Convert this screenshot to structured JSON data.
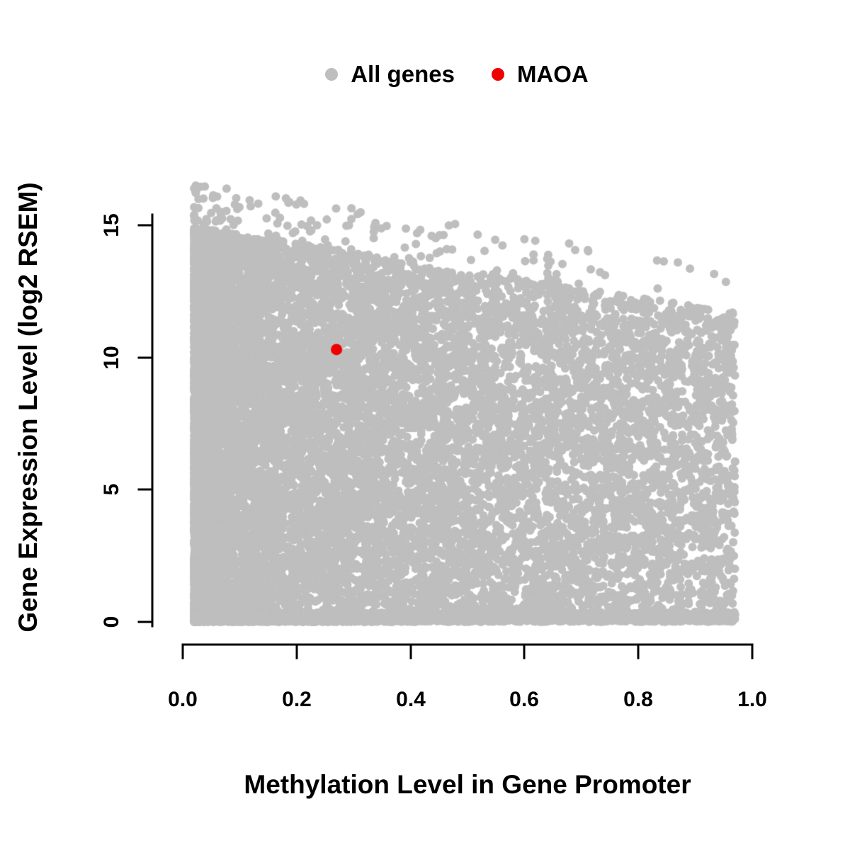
{
  "chart_data": {
    "type": "scatter",
    "title": "",
    "xlabel": "Methylation Level in Gene Promoter",
    "ylabel": "Gene Expression Level (log2 RSEM)",
    "xlim": [
      0,
      1
    ],
    "ylim": [
      0,
      15
    ],
    "x_ticks": [
      "0.0",
      "0.2",
      "0.4",
      "0.6",
      "0.8",
      "1.0"
    ],
    "y_ticks": [
      "0",
      "5",
      "10",
      "15"
    ],
    "grid": false,
    "legend_position": "top-center",
    "axis_color": "#000000",
    "series": [
      {
        "name": "All genes",
        "color": "#bebebe",
        "point_radius_px": 6,
        "n_points": 16000,
        "seed": 42,
        "distribution": {
          "x_min": 0.02,
          "x_max": 0.97,
          "x_skew_pow": 2.0,
          "envelope_y_at_x0": 15.0,
          "envelope_slope": -3.4,
          "bottom_band_fraction": 0.18,
          "bottom_band_height": 0.35,
          "outlier_fraction": 0.009,
          "outlier_extra_y": 1.7,
          "y_cap": 16.5
        }
      },
      {
        "name": "MAOA",
        "color": "#ee0000",
        "point_radius_px": 8,
        "points": [
          [
            0.27,
            10.3
          ]
        ]
      }
    ]
  }
}
